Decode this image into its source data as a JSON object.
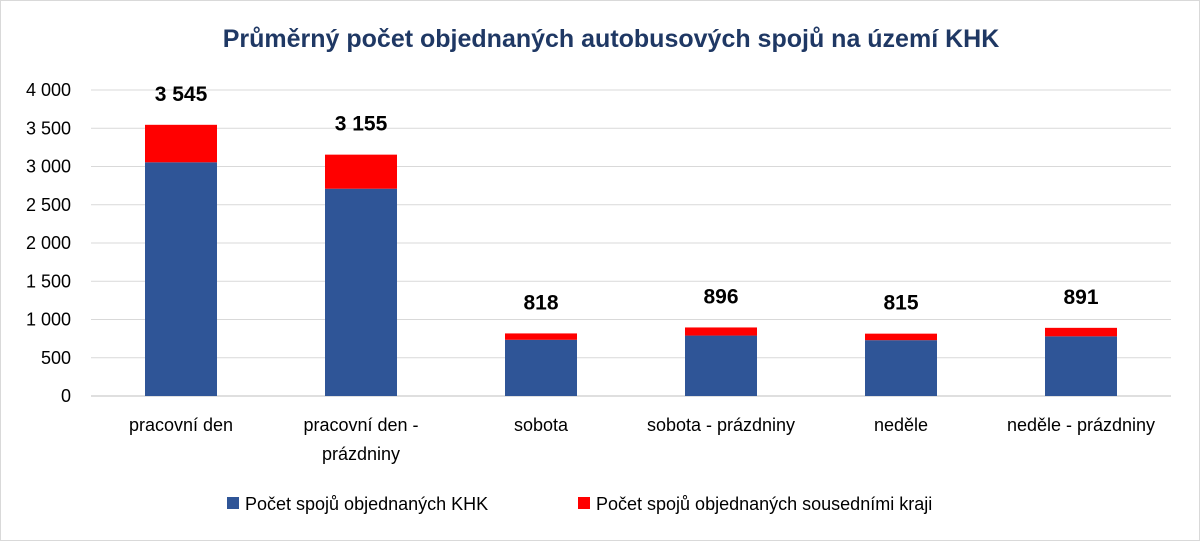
{
  "chart_data": {
    "type": "bar",
    "stacked": true,
    "title": "Průměrný počet objednaných autobusových spojů na území KHK",
    "categories": [
      [
        "pracovní den"
      ],
      [
        "pracovní den -",
        "prázdniny"
      ],
      [
        "sobota"
      ],
      [
        "sobota - prázdniny"
      ],
      [
        "neděle"
      ],
      [
        "neděle - prázdniny"
      ]
    ],
    "series": [
      {
        "name": "Počet spojů objednaných KHK",
        "color": "#2f5597",
        "values": [
          3055,
          2710,
          735,
          790,
          730,
          780
        ]
      },
      {
        "name": "Počet spojů objednaných sousedními kraji",
        "color": "#ff0000",
        "values": [
          490,
          445,
          83,
          106,
          85,
          111
        ]
      }
    ],
    "totals": [
      "3 545",
      "3 155",
      "818",
      "896",
      "815",
      "891"
    ],
    "yticks": [
      "0",
      "500",
      "1 000",
      "1 500",
      "2 000",
      "2 500",
      "3 000",
      "3 500",
      "4 000"
    ],
    "ylim": [
      0,
      4000
    ],
    "ytick_step": 500,
    "grid": true,
    "legend_position": "bottom",
    "xlabel": "",
    "ylabel": ""
  }
}
